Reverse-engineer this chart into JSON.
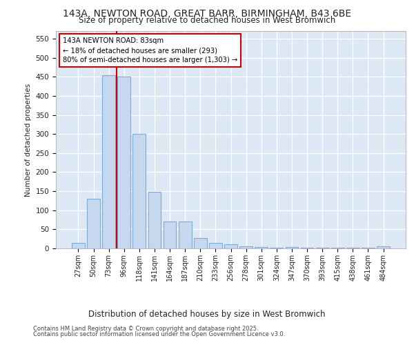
{
  "title_line1": "143A, NEWTON ROAD, GREAT BARR, BIRMINGHAM, B43 6BE",
  "title_line2": "Size of property relative to detached houses in West Bromwich",
  "xlabel": "Distribution of detached houses by size in West Bromwich",
  "ylabel": "Number of detached properties",
  "categories": [
    "27sqm",
    "50sqm",
    "73sqm",
    "96sqm",
    "118sqm",
    "141sqm",
    "164sqm",
    "187sqm",
    "210sqm",
    "233sqm",
    "256sqm",
    "278sqm",
    "301sqm",
    "324sqm",
    "347sqm",
    "370sqm",
    "393sqm",
    "415sqm",
    "438sqm",
    "461sqm",
    "484sqm"
  ],
  "values": [
    15,
    130,
    455,
    450,
    300,
    148,
    70,
    70,
    28,
    15,
    10,
    5,
    3,
    2,
    3,
    1,
    1,
    1,
    1,
    1,
    5
  ],
  "bar_color": "#c5d8ef",
  "bar_edge_color": "#7aaed6",
  "vline_x_index": 3,
  "vline_color": "#cc0000",
  "annotation_text": "143A NEWTON ROAD: 83sqm\n← 18% of detached houses are smaller (293)\n80% of semi-detached houses are larger (1,303) →",
  "annotation_box_facecolor": "#ffffff",
  "annotation_box_edgecolor": "#cc0000",
  "ylim": [
    0,
    570
  ],
  "yticks": [
    0,
    50,
    100,
    150,
    200,
    250,
    300,
    350,
    400,
    450,
    500,
    550
  ],
  "background_color": "#dde8f5",
  "grid_color": "#ffffff",
  "footer_line1": "Contains HM Land Registry data © Crown copyright and database right 2025.",
  "footer_line2": "Contains public sector information licensed under the Open Government Licence v3.0."
}
